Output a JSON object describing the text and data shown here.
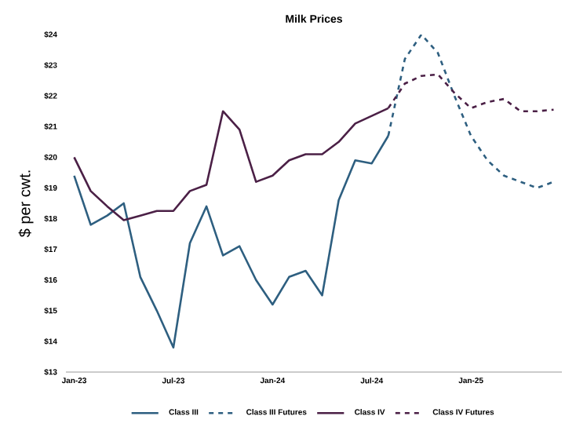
{
  "chart_data": {
    "type": "line",
    "title": "Milk Prices",
    "ylabel": "$ per cwt.",
    "categories": [
      "Jan-23",
      null,
      null,
      null,
      null,
      null,
      "Jul-23",
      null,
      null,
      null,
      null,
      null,
      "Jan-24",
      null,
      null,
      null,
      null,
      null,
      "Jul-24",
      null,
      null,
      null,
      null,
      null,
      "Jan-25",
      null,
      null,
      null,
      null,
      null
    ],
    "series": [
      {
        "name": "Class III",
        "color": "#2e5f80",
        "line_style": "solid",
        "values": [
          19.4,
          17.8,
          18.1,
          18.5,
          16.1,
          15.0,
          13.8,
          17.2,
          18.4,
          16.8,
          17.1,
          16.0,
          15.2,
          16.1,
          16.3,
          15.5,
          18.6,
          19.9,
          19.8,
          20.7,
          null,
          null,
          null,
          null,
          null,
          null,
          null,
          null,
          null,
          null
        ]
      },
      {
        "name": "Class III Futures",
        "color": "#2e5f80",
        "line_style": "dashed",
        "values": [
          null,
          null,
          null,
          null,
          null,
          null,
          null,
          null,
          null,
          null,
          null,
          null,
          null,
          null,
          null,
          null,
          null,
          null,
          null,
          20.7,
          23.2,
          24.0,
          23.4,
          22.0,
          20.7,
          19.9,
          19.4,
          19.2,
          19.0,
          19.2
        ]
      },
      {
        "name": "Class IV",
        "color": "#4b2046",
        "line_style": "solid",
        "values": [
          20.0,
          18.9,
          18.4,
          17.95,
          18.1,
          18.25,
          18.25,
          18.9,
          19.1,
          21.5,
          20.9,
          19.2,
          19.4,
          19.9,
          20.1,
          20.1,
          20.5,
          21.1,
          21.35,
          21.6,
          null,
          null,
          null,
          null,
          null,
          null,
          null,
          null,
          null,
          null
        ]
      },
      {
        "name": "Class IV Futures",
        "color": "#4b2046",
        "line_style": "dashed",
        "values": [
          null,
          null,
          null,
          null,
          null,
          null,
          null,
          null,
          null,
          null,
          null,
          null,
          null,
          null,
          null,
          null,
          null,
          null,
          null,
          21.6,
          22.4,
          22.65,
          22.7,
          22.1,
          21.6,
          21.8,
          21.9,
          21.5,
          21.5,
          21.55
        ]
      }
    ],
    "ylim": [
      13,
      24
    ],
    "yticks": [
      {
        "value": 13,
        "label": "$13"
      },
      {
        "value": 14,
        "label": "$14"
      },
      {
        "value": 15,
        "label": "$15"
      },
      {
        "value": 16,
        "label": "$16"
      },
      {
        "value": 17,
        "label": "$17"
      },
      {
        "value": 18,
        "label": "$18"
      },
      {
        "value": 19,
        "label": "$19"
      },
      {
        "value": 20,
        "label": "$20"
      },
      {
        "value": 21,
        "label": "$21"
      },
      {
        "value": 22,
        "label": "$22"
      },
      {
        "value": 23,
        "label": "$23"
      },
      {
        "value": 24,
        "label": "$24"
      }
    ],
    "legend": "bottom",
    "marker": "none"
  }
}
